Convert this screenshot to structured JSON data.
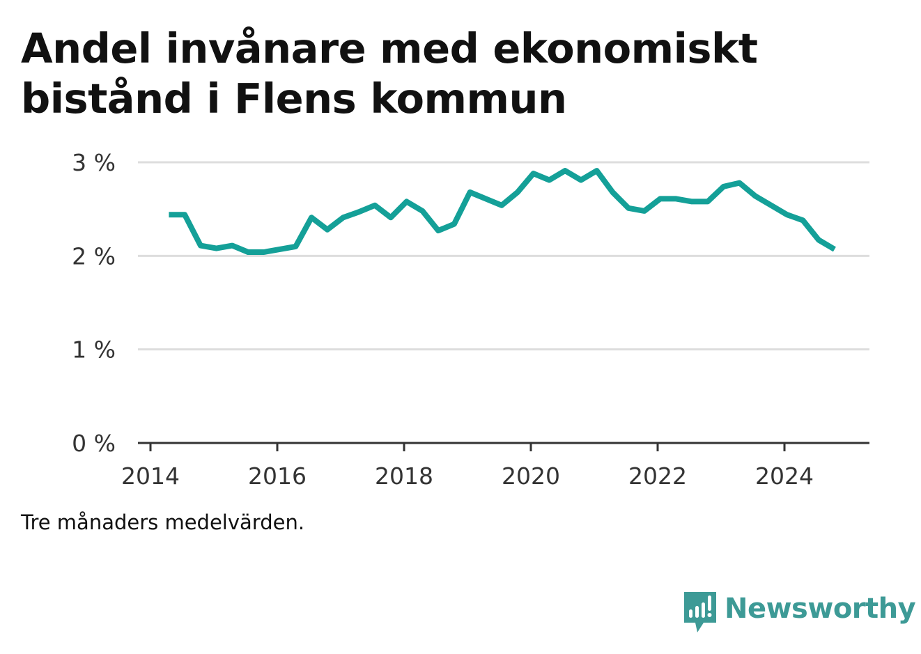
{
  "title": "Andel invånare med ekonomiskt bistånd i Flens kommun",
  "note": "Tre månaders medelvärden.",
  "brand": {
    "name": "Newsworthy",
    "icon": "newsworthy-logo-icon",
    "color": "#3d9a96"
  },
  "chart_data": {
    "type": "line",
    "title": "Andel invånare med ekonomiskt bistånd i Flens kommun",
    "xlabel": "",
    "ylabel": "",
    "xlim": [
      2014,
      2025.35
    ],
    "ylim": [
      0,
      3
    ],
    "x_ticks": [
      2014,
      2016,
      2018,
      2020,
      2022,
      2024
    ],
    "y_ticks": [
      0,
      1,
      2,
      3
    ],
    "y_tick_labels": [
      "0 %",
      "1 %",
      "2 %",
      "3 %"
    ],
    "grid": "horizontal",
    "line_color": "#14a098",
    "series": [
      {
        "x": [
          2014.29,
          2014.54,
          2014.79,
          2015.04,
          2015.29,
          2015.54,
          2015.79,
          2016.04,
          2016.29,
          2016.54,
          2016.79,
          2017.04,
          2017.29,
          2017.54,
          2017.79,
          2018.04,
          2018.29,
          2018.54,
          2018.79,
          2019.04,
          2019.29,
          2019.54,
          2019.79,
          2020.04,
          2020.29,
          2020.54,
          2020.79,
          2021.04,
          2021.29,
          2021.54,
          2021.79,
          2022.04,
          2022.29,
          2022.54,
          2022.79,
          2023.04,
          2023.29,
          2023.54,
          2023.79,
          2024.04,
          2024.29,
          2024.54,
          2024.79
        ],
        "values": [
          2.44,
          2.44,
          2.11,
          2.08,
          2.11,
          2.04,
          2.04,
          2.07,
          2.1,
          2.41,
          2.28,
          2.41,
          2.47,
          2.54,
          2.41,
          2.58,
          2.48,
          2.27,
          2.34,
          2.68,
          2.61,
          2.54,
          2.68,
          2.88,
          2.81,
          2.91,
          2.81,
          2.91,
          2.68,
          2.51,
          2.48,
          2.61,
          2.61,
          2.58,
          2.58,
          2.74,
          2.78,
          2.64,
          2.54,
          2.44,
          2.38,
          2.17,
          2.07
        ]
      }
    ]
  }
}
